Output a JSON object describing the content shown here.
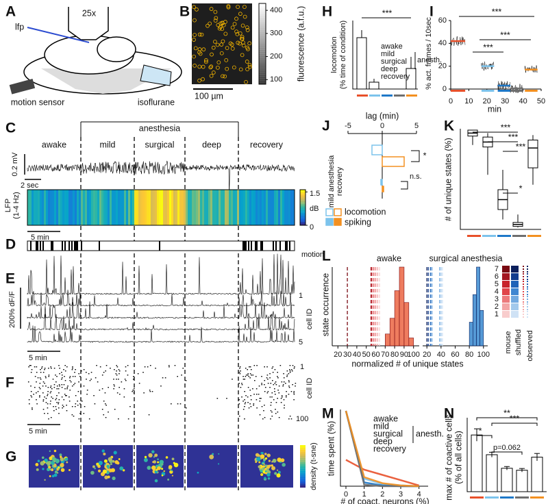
{
  "conditions": {
    "names": [
      "awake",
      "mild",
      "surgical",
      "deep",
      "recovery"
    ],
    "colors": [
      "#e8502a",
      "#7cc3ec",
      "#1e78c8",
      "#6e6e6e",
      "#f39020"
    ],
    "group_label": "anesth."
  },
  "panels": {
    "A": {
      "letter": "A",
      "lfp": "lfp",
      "objective": "25x",
      "motion_sensor": "motion sensor",
      "isoflurane": "isoflurane"
    },
    "B": {
      "letter": "B",
      "cbar_label": "fluorescence (a.f.u.)",
      "cbar_lim": [
        80,
        430
      ],
      "cbar_ticks": [
        100,
        200,
        300,
        400
      ],
      "scale_bar": "100 µm"
    },
    "C": {
      "letter": "C",
      "anesthesia": "anesthesia",
      "mv": "0.2 mV",
      "sec": "2 sec",
      "lfp_label": "LFP",
      "lfp_band": "(1-4 Hz)",
      "cbar_lim": [
        0,
        1.6
      ],
      "cbar_ticks": [
        0,
        1.5
      ],
      "cbar_unit": "dB",
      "time_bar": "5 min"
    },
    "D": {
      "letter": "D",
      "label": "motion"
    },
    "E": {
      "letter": "E",
      "scale": "200% dF/F",
      "ids": [
        1,
        5
      ],
      "axis_label": "cell ID",
      "time_bar": "5 min"
    },
    "F": {
      "letter": "F",
      "ids": [
        1,
        100
      ],
      "axis_label": "cell ID",
      "time_bar": "5 min"
    },
    "G": {
      "letter": "G",
      "cbar_label": "density (t-sne)"
    },
    "H": {
      "letter": "H",
      "ylabel": "locomotion",
      "ylabel2": "(% time of condition)",
      "ylim": [
        0,
        10
      ],
      "values": [
        7.5,
        1,
        0,
        0,
        3
      ],
      "errors": [
        1.1,
        0.5,
        0,
        0,
        1.7
      ],
      "significance": "***"
    },
    "I": {
      "letter": "I",
      "ylabel": "% act. frames / 10sec",
      "xlabel": "min",
      "xlim": [
        0,
        50
      ],
      "ylim": [
        0,
        60
      ],
      "xticks": [
        0,
        10,
        20,
        30,
        40,
        50
      ],
      "yticks": [
        0,
        20,
        40,
        60
      ],
      "segments": [
        [
          0,
          8
        ],
        [
          17,
          24
        ],
        [
          26,
          33
        ],
        [
          33,
          40
        ],
        [
          41,
          48
        ]
      ],
      "values": [
        42,
        20,
        3,
        0.5,
        17
      ],
      "significance": [
        "***",
        "***",
        "***"
      ]
    },
    "J": {
      "letter": "J",
      "xlabel": "lag (min)",
      "xlim": [
        -5,
        5
      ],
      "xticks": [
        -5,
        0,
        5
      ],
      "rows": [
        "mild anesthesia",
        "recovery"
      ],
      "locomotion_lag": [
        -1.5,
        3.2
      ],
      "spiking_lag": [
        -0.2,
        0.2
      ],
      "significance": [
        "*",
        "n.s."
      ],
      "legend": [
        "locomotion",
        "spiking"
      ]
    },
    "K": {
      "letter": "K",
      "ylabel": "# of unique states (%)",
      "ylim": [
        0,
        100
      ],
      "stats": [
        [
          85,
          94,
          97,
          100,
          100
        ],
        [
          55,
          83,
          88,
          93,
          97
        ],
        [
          10,
          20,
          30,
          40,
          60
        ],
        [
          2,
          3,
          5,
          7,
          15
        ],
        [
          45,
          62,
          82,
          90,
          95
        ]
      ],
      "significance": [
        "***",
        "***",
        "***",
        "*"
      ]
    },
    "L": {
      "letter": "L",
      "ylabel": "state occurrence",
      "xlabel": "normalized # of unique states",
      "titles": [
        "awake",
        "surgical anesthesia"
      ],
      "xlim": [
        14,
        106
      ],
      "xticks_left": [
        20,
        30,
        40,
        50,
        60,
        70,
        80,
        90,
        100
      ],
      "xticks_right": [
        20,
        40,
        60,
        80,
        100
      ],
      "bins": [
        [
          70,
          75,
          80,
          85,
          90,
          95,
          100
        ],
        [
          80,
          85,
          90,
          95,
          100
        ]
      ],
      "counts": [
        [
          0.15,
          0.35,
          0.7,
          1,
          0.55,
          0.1
        ],
        [
          0.3,
          0.65,
          1,
          0.45
        ]
      ],
      "shuffled": [
        [
          30,
          55,
          56,
          58,
          60,
          62,
          64
        ],
        [
          20,
          22,
          25,
          27,
          38,
          40,
          42
        ]
      ],
      "mice": [
        7,
        6,
        5,
        4,
        3,
        2,
        1
      ],
      "legend": [
        "mouse",
        "shuffled",
        "observed"
      ]
    },
    "M": {
      "letter": "M",
      "ylabel": "time spent (%)",
      "xlabel": "# of coact. neurons (%)",
      "xlim": [
        -0.3,
        4.5
      ],
      "ylim": [
        0,
        100
      ],
      "xticks": [
        0,
        1,
        2,
        3,
        4
      ],
      "x": [
        0,
        1,
        2,
        3,
        4
      ],
      "values": [
        [
          35,
          22,
          15,
          8,
          1
        ],
        [
          100,
          10,
          3,
          1,
          0
        ],
        [
          100,
          5,
          1,
          0,
          0
        ],
        [
          100,
          2,
          0,
          0,
          0
        ],
        [
          100,
          12,
          4,
          1,
          0
        ]
      ]
    },
    "N": {
      "letter": "N",
      "ylabel": "max # of coactive cells",
      "ylabel2": "(% of all cells)",
      "ylim": [
        0,
        3
      ],
      "values": [
        2.3,
        1.5,
        0.95,
        0.87,
        1.4
      ],
      "errors": [
        0.25,
        0.1,
        0.07,
        0.07,
        0.15
      ],
      "significance": [
        "**",
        "*",
        "***",
        "p=0.062"
      ]
    }
  }
}
